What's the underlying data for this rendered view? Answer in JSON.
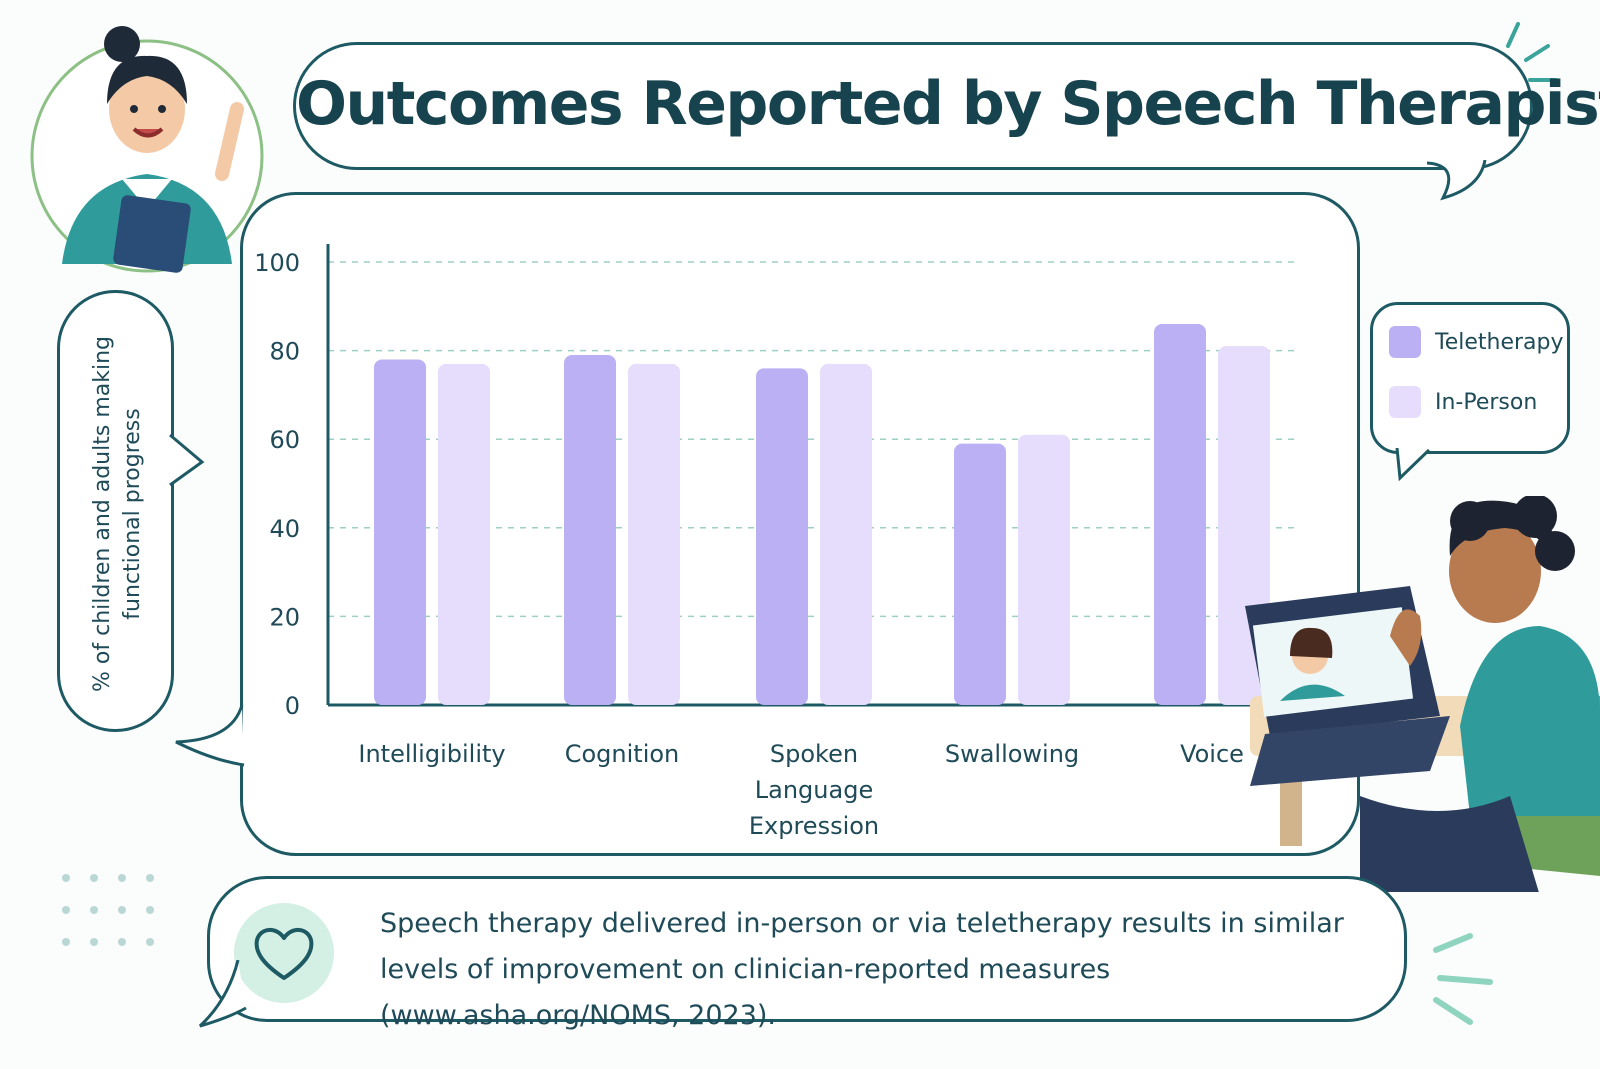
{
  "title": "Outcomes Reported by Speech Therapists",
  "note": {
    "text": "Speech therapy delivered in-person or via teletherapy results in similar levels of improvement on clinician-reported measures (www.asha.org/NOMS, 2023).",
    "icon": "heart-icon"
  },
  "colors": {
    "teletherapy": "#bcb0f5",
    "in_person": "#e6ddfc",
    "outline": "#1e5a64",
    "accent": "#5bb7a8"
  },
  "chart_data": {
    "type": "bar",
    "ylabel": "% of children and adults making functional progress",
    "xlabel": "",
    "ylim": [
      0,
      100
    ],
    "yticks": [
      0,
      20,
      40,
      60,
      80,
      100
    ],
    "grid": true,
    "legend_position": "right",
    "categories": [
      [
        "Intelligibility"
      ],
      [
        "Cognition"
      ],
      [
        "Spoken",
        "Language",
        "Expression"
      ],
      [
        "Swallowing"
      ],
      [
        "Voice"
      ]
    ],
    "series": [
      {
        "name": "Teletherapy",
        "color": "#bcb0f5",
        "values": [
          78,
          79,
          76,
          59,
          86
        ]
      },
      {
        "name": "In-Person",
        "color": "#e6ddfc",
        "values": [
          77,
          77,
          77,
          61,
          81
        ]
      }
    ]
  }
}
